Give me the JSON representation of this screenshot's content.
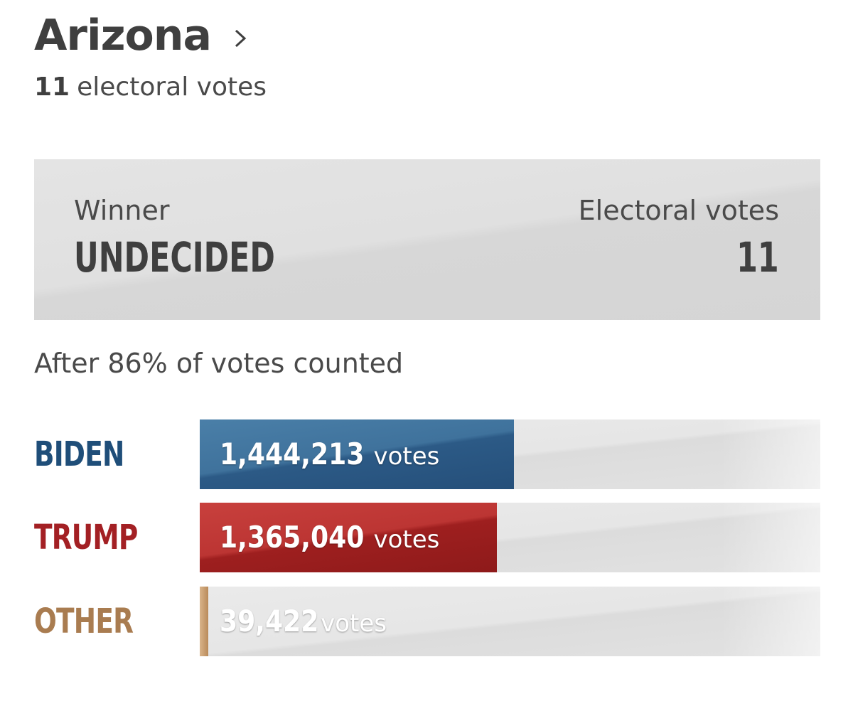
{
  "header": {
    "state_name": "Arizona",
    "electoral_votes_number": "11",
    "electoral_votes_text": "electoral votes"
  },
  "winner_box": {
    "winner_label": "Winner",
    "winner_value": "UNDECIDED",
    "ev_label": "Electoral votes",
    "ev_value": "11"
  },
  "counted_text": "After 86% of votes counted",
  "colors": {
    "biden": "#1f4e79",
    "trump": "#a32024",
    "other": "#a97c50"
  },
  "chart_data": {
    "type": "bar",
    "categories": [
      "BIDEN",
      "TRUMP",
      "OTHER"
    ],
    "values": [
      1444213,
      1365040,
      39422
    ],
    "labels": [
      "1,444,213",
      "1,365,040",
      "39,422"
    ],
    "unit": "votes",
    "xlim": [
      0,
      2850000
    ]
  }
}
